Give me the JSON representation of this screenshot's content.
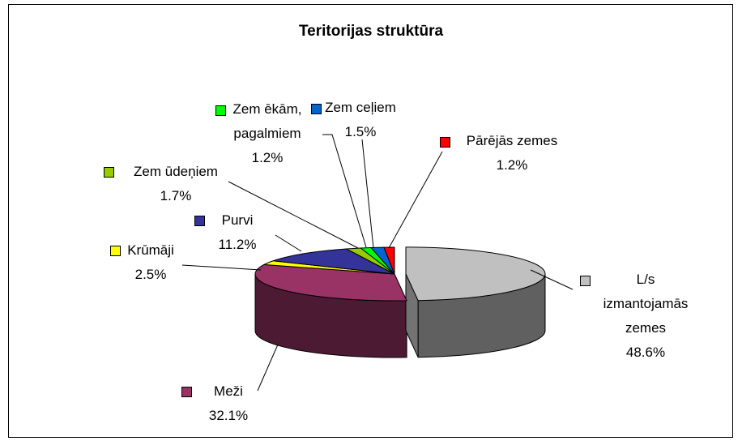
{
  "chart_data": {
    "type": "pie",
    "title": "Teritorijas struktūra",
    "categories": [
      "L/s izmantojamās zemes",
      "Meži",
      "Krūmāji",
      "Purvi",
      "Zem ūdeņiem",
      "Zem ēkām, pagalmiem",
      "Zem ceļiem",
      "Pārējās zemes"
    ],
    "values": [
      48.6,
      32.1,
      2.5,
      11.2,
      1.7,
      1.2,
      1.5,
      1.2
    ],
    "value_labels": [
      "48.6%",
      "32.1%",
      "2.5%",
      "11.2%",
      "1.7%",
      "1.2%",
      "1.5%",
      "1.2%"
    ],
    "colors": [
      "#c0c0c0",
      "#993366",
      "#ffff00",
      "#333399",
      "#99cc00",
      "#00ff00",
      "#0066cc",
      "#ff0000"
    ]
  }
}
